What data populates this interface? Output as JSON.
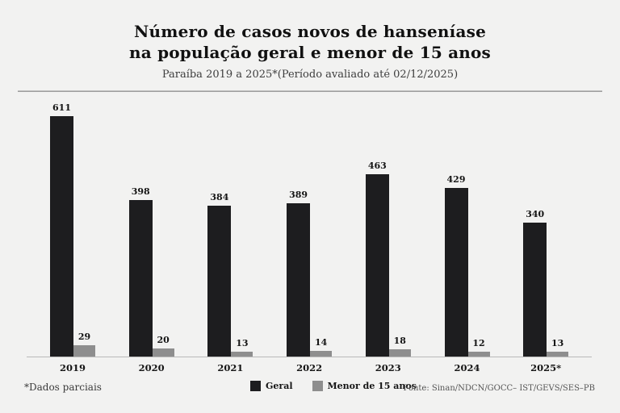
{
  "header": {
    "title_line1": "Número de casos novos de hanseníase",
    "title_line2": "na população geral e menor de 15 anos",
    "subtitle": "Paraíba 2019 a 2025*(Período avaliado até 02/12/2025)"
  },
  "chart_data": {
    "type": "bar",
    "title": "Número de casos novos de hanseníase na população geral e menor de 15 anos",
    "subtitle": "Paraíba 2019 a 2025*(Período avaliado até 02/12/2025)",
    "categories": [
      "2019",
      "2020",
      "2021",
      "2022",
      "2023",
      "2024",
      "2025*"
    ],
    "series": [
      {
        "name": "Geral",
        "color": "#1d1d1f",
        "values": [
          611,
          398,
          384,
          389,
          463,
          429,
          340
        ]
      },
      {
        "name": "Menor de 15 anos",
        "color": "#8e8e8e",
        "values": [
          29,
          20,
          13,
          14,
          18,
          12,
          13
        ]
      }
    ],
    "xlabel": "",
    "ylabel": "",
    "ylim": [
      0,
      650
    ],
    "grid": false,
    "value_labels": true,
    "legend_position": "bottom"
  },
  "legend": {
    "items": [
      {
        "label": "Geral",
        "color": "#1d1d1f"
      },
      {
        "label": "Menor de 15 anos",
        "color": "#8e8e8e"
      }
    ]
  },
  "footer": {
    "note": "*Dados parciais",
    "source": "Fonte: Sinan/NDCN/GOCC– IST/GEVS/SES–PB"
  },
  "colors": {
    "background": "#f2f2f1",
    "bar_geral": "#1d1d1f",
    "bar_menor15": "#8e8e8e",
    "axis": "#b9b9b9",
    "text": "#111111"
  }
}
